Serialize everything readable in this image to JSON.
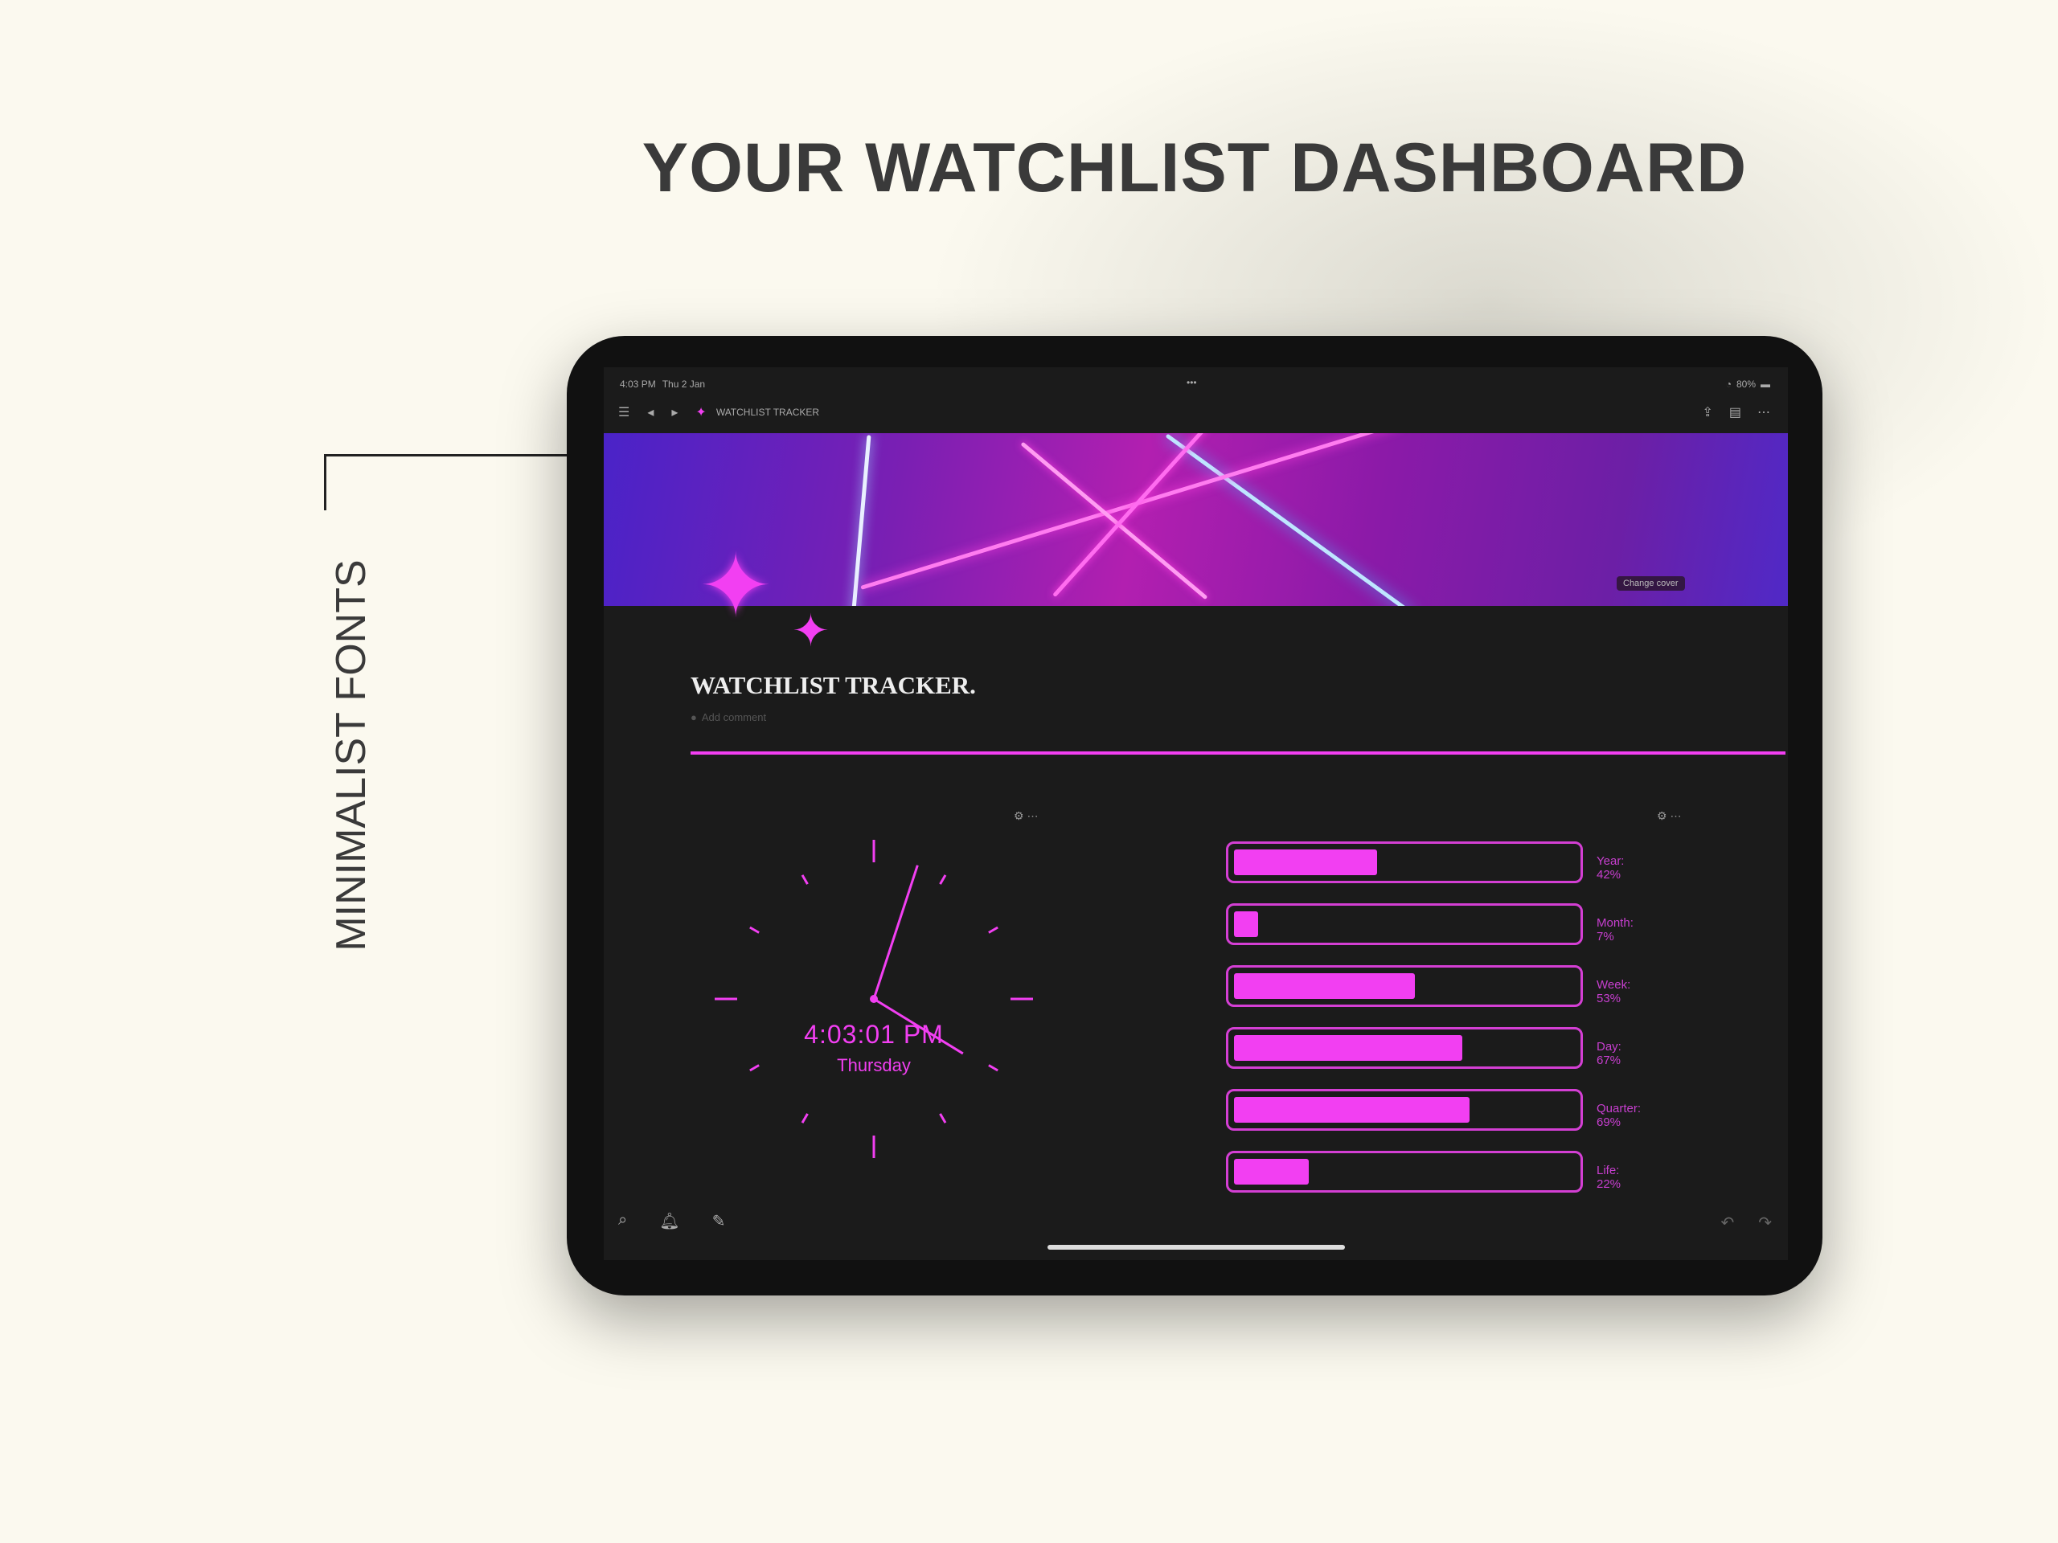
{
  "headline": "YOUR WATCHLIST DASHBOARD",
  "side_label": "MINIMALIST FONTS",
  "status_bar": {
    "time": "4:03 PM",
    "date": "Thu 2 Jan",
    "battery": "80%"
  },
  "toolbar": {
    "page_title": "WATCHLIST TRACKER"
  },
  "banner": {
    "change_cover": "Change cover"
  },
  "page": {
    "title": "WATCHLIST TRACKER.",
    "add_comment": "Add comment"
  },
  "clock": {
    "time": "4:03:01 PM",
    "day": "Thursday",
    "hours": 4,
    "minutes": 3,
    "seconds": 1
  },
  "progress": [
    {
      "label": "Year: 42%",
      "value": 42
    },
    {
      "label": "Month: 7%",
      "value": 7
    },
    {
      "label": "Week: 53%",
      "value": 53
    },
    {
      "label": "Day: 67%",
      "value": 67
    },
    {
      "label": "Quarter: 69%",
      "value": 69
    },
    {
      "label": "Life: 22%",
      "value": 22
    }
  ],
  "colors": {
    "accent": "#f23ff2",
    "background": "#fbf9ef",
    "screen": "#1b1b1b"
  }
}
